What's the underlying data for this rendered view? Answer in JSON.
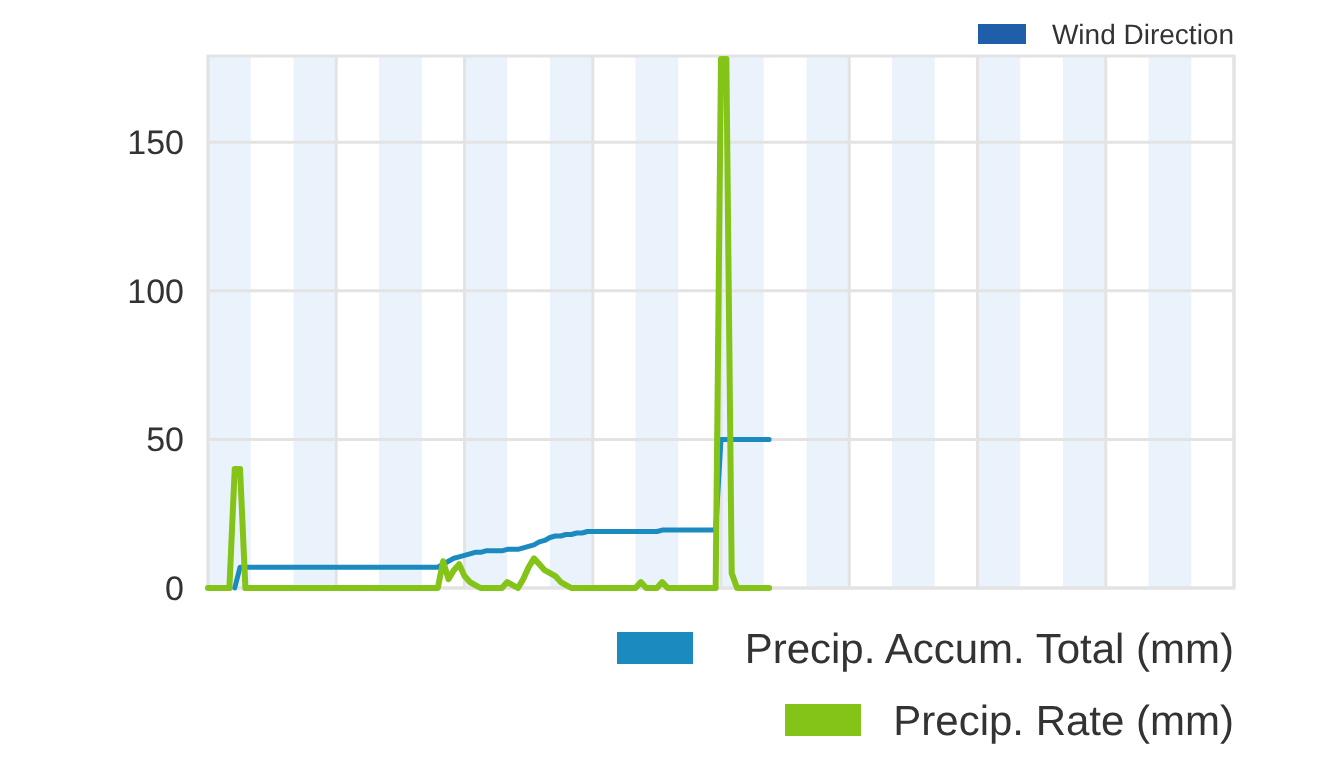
{
  "chart_data": {
    "type": "line",
    "categories": [
      null,
      null,
      null,
      null,
      null,
      null,
      null,
      null,
      null,
      null,
      null,
      null,
      null,
      null,
      null,
      null,
      null,
      null,
      null,
      null,
      null,
      null,
      null,
      null,
      null,
      null,
      null,
      null,
      null,
      null,
      null,
      null,
      null,
      null,
      null,
      null,
      null,
      null,
      null,
      null,
      null,
      null,
      null,
      null,
      null,
      null,
      null,
      null,
      null,
      null,
      null,
      null,
      null,
      null,
      null,
      null,
      null,
      null,
      null,
      null,
      null,
      null,
      null,
      null,
      null,
      null,
      null,
      null,
      null,
      null,
      null,
      null,
      null,
      null,
      null,
      null,
      null,
      null,
      null,
      null,
      null,
      null,
      null,
      null,
      null,
      null,
      null,
      null,
      null,
      null,
      null,
      null,
      null,
      null,
      null,
      null,
      null,
      null,
      null,
      null,
      null,
      null,
      null,
      null,
      null,
      null,
      null,
      null,
      null,
      null,
      null,
      null,
      null,
      null,
      null,
      null,
      null,
      null,
      null,
      null,
      null,
      null,
      null,
      null,
      null,
      null,
      null,
      null,
      null,
      null,
      null,
      null,
      null,
      null,
      null,
      null,
      null,
      null,
      null,
      null,
      null,
      null,
      null,
      null,
      null,
      null,
      null,
      null,
      null,
      null,
      null,
      null,
      null,
      null,
      null,
      null,
      null,
      null,
      null,
      null,
      null,
      null,
      null,
      null,
      null,
      null,
      null,
      null,
      null,
      null,
      null,
      null,
      null,
      null,
      null,
      null,
      null,
      null,
      null,
      null,
      null,
      null,
      null,
      null,
      null,
      null,
      null,
      null,
      null,
      null,
      null,
      null,
      null
    ],
    "ylim": [
      0,
      179
    ],
    "yticks": [
      0,
      50,
      100,
      150
    ],
    "grid": true,
    "tick_labels": "y",
    "legend": "bottom right",
    "series": [
      {
        "name": "Wind Direction",
        "color": "#1f5ea8",
        "values": [
          null,
          null,
          null,
          null,
          null,
          null,
          null,
          null,
          null,
          null,
          null,
          null,
          null,
          null,
          null,
          null,
          null,
          null,
          null,
          null,
          null,
          null,
          null,
          null,
          null,
          null,
          null,
          null,
          null,
          null,
          null,
          null,
          null,
          null,
          null,
          null,
          null,
          null,
          null,
          null,
          null,
          null,
          null,
          null,
          null,
          null,
          null,
          null,
          null,
          null,
          null,
          null,
          null,
          null,
          null,
          null,
          null,
          null,
          null,
          null,
          null,
          null,
          null,
          null,
          null,
          null,
          null,
          null,
          null,
          null,
          null,
          null,
          null,
          null,
          null,
          null,
          null,
          null,
          null,
          null,
          null,
          null,
          null,
          null,
          null,
          null,
          null,
          null,
          null,
          null,
          null,
          null,
          null,
          null,
          null,
          null,
          null,
          null,
          null,
          null,
          null,
          null,
          null,
          null,
          null,
          null,
          null,
          null,
          null,
          null,
          null,
          null,
          null,
          null,
          null,
          null,
          null,
          null,
          null,
          null,
          null,
          null,
          null,
          null,
          null,
          null,
          null,
          null,
          null,
          null,
          null,
          null,
          null,
          null,
          null,
          null,
          null,
          null,
          null,
          null,
          null,
          null,
          null,
          null,
          null,
          null,
          null,
          null,
          null,
          null,
          null,
          null,
          null,
          null,
          null,
          null,
          null,
          null,
          null,
          null,
          null,
          null,
          null,
          null,
          null,
          null,
          null,
          null,
          null,
          null,
          null,
          null,
          null,
          null,
          null,
          null,
          null,
          null,
          null,
          null,
          null,
          null,
          null,
          null,
          null,
          null,
          null,
          null,
          null,
          null,
          null,
          null,
          null
        ]
      },
      {
        "name": "Precip. Accum. Total (mm)",
        "color": "#1b8bbf",
        "values": [
          null,
          null,
          null,
          null,
          null,
          0,
          7,
          7,
          7,
          7,
          7,
          7,
          7,
          7,
          7,
          7,
          7,
          7,
          7,
          7,
          7,
          7,
          7,
          7,
          7,
          7,
          7,
          7,
          7,
          7,
          7,
          7,
          7,
          7,
          7,
          7,
          7,
          7,
          7,
          7,
          7,
          7,
          7,
          7,
          8,
          9,
          10,
          10.5,
          11,
          11.5,
          12,
          12,
          12.5,
          12.5,
          12.5,
          12.5,
          13,
          13,
          13,
          13.5,
          14,
          14.5,
          15.5,
          16,
          17,
          17.5,
          17.5,
          18,
          18,
          18.5,
          18.5,
          19,
          19,
          19,
          19,
          19,
          19,
          19,
          19,
          19,
          19,
          19,
          19,
          19,
          19,
          19.5,
          19.5,
          19.5,
          19.5,
          19.5,
          19.5,
          19.5,
          19.5,
          19.5,
          19.5,
          19.5,
          50,
          50,
          50,
          50,
          50,
          50,
          50,
          50,
          50,
          50,
          null,
          null,
          null,
          null,
          null,
          null,
          null,
          null,
          null,
          null,
          null,
          null,
          null,
          null,
          null,
          null,
          null,
          null,
          null,
          null,
          null,
          null,
          null,
          null,
          null,
          null,
          null,
          null,
          null,
          null,
          null,
          null,
          null,
          null,
          null,
          null,
          null,
          null,
          null,
          null,
          null,
          null,
          null,
          null,
          null,
          null,
          null,
          null,
          null,
          null,
          null,
          null,
          null,
          null,
          null,
          null,
          null,
          null,
          null,
          null,
          null,
          null,
          null,
          null,
          null,
          null,
          null,
          null,
          null,
          null,
          null,
          null,
          null,
          null,
          null,
          null,
          null,
          null,
          null,
          null,
          null,
          null,
          null,
          null,
          null,
          null,
          null
        ]
      },
      {
        "name": "Precip. Rate (mm)",
        "color": "#84c318",
        "values": [
          0,
          0,
          0,
          0,
          0,
          40,
          40,
          0,
          0,
          0,
          0,
          0,
          0,
          0,
          0,
          0,
          0,
          0,
          0,
          0,
          0,
          0,
          0,
          0,
          0,
          0,
          0,
          0,
          0,
          0,
          0,
          0,
          0,
          0,
          0,
          0,
          0,
          0,
          0,
          0,
          0,
          0,
          0,
          0,
          9,
          3,
          6,
          8,
          4,
          2,
          1,
          0,
          0,
          0,
          0,
          0,
          2,
          1,
          0,
          3,
          7,
          10,
          8,
          6,
          5,
          4,
          2,
          1,
          0,
          0,
          0,
          0,
          0,
          0,
          0,
          0,
          0,
          0,
          0,
          0,
          0,
          2,
          0,
          0,
          0,
          2,
          0,
          0,
          0,
          0,
          0,
          0,
          0,
          0,
          0,
          0,
          178,
          178,
          5,
          0,
          0,
          0,
          0,
          0,
          0,
          0,
          null,
          null,
          null,
          null,
          null,
          null,
          null,
          null,
          null,
          null,
          null,
          null,
          null,
          null,
          null,
          null,
          null,
          null,
          null,
          null,
          null,
          null,
          null,
          null,
          null,
          null,
          null,
          null,
          null,
          null,
          null,
          null,
          null,
          null,
          null,
          null,
          null,
          null,
          null,
          null,
          null,
          null,
          null,
          null,
          null,
          null,
          null,
          null,
          null,
          null,
          null,
          null,
          null,
          null,
          null,
          null,
          null,
          null,
          null,
          null,
          null,
          null,
          null,
          null,
          null,
          null,
          null,
          null,
          null,
          null,
          null,
          null,
          null,
          null,
          null,
          null,
          null,
          null,
          null,
          null,
          null,
          null,
          null,
          null,
          null,
          null,
          null
        ]
      }
    ]
  }
}
